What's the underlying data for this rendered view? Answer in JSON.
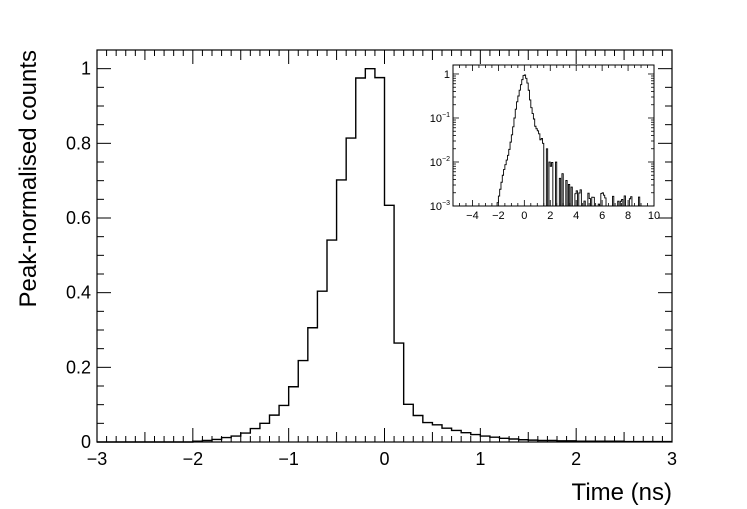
{
  "chart_data": [
    {
      "type": "histogram",
      "xlabel": "Time (ns)",
      "ylabel": "Peak-normalised counts",
      "xlim": [
        -3,
        3
      ],
      "ylim": [
        0,
        1.05
      ],
      "xticks": [
        -3,
        -2,
        -1,
        0,
        1,
        2,
        3
      ],
      "xtick_labels": [
        "−3",
        "−2",
        "−1",
        "0",
        "1",
        "2",
        "3"
      ],
      "yticks": [
        0,
        0.2,
        0.4,
        0.6,
        0.8,
        1
      ],
      "ytick_labels": [
        "0",
        "0.2",
        "0.4",
        "0.6",
        "0.8",
        "1"
      ],
      "bin_width": 0.1,
      "bin_start": -3.0,
      "values": [
        0,
        0,
        0,
        0,
        0,
        0,
        0,
        0,
        0,
        0,
        0.002,
        0.004,
        0.007,
        0.012,
        0.016,
        0.024,
        0.036,
        0.05,
        0.072,
        0.098,
        0.148,
        0.218,
        0.306,
        0.404,
        0.541,
        0.702,
        0.814,
        0.975,
        1.0,
        0.976,
        0.634,
        0.265,
        0.101,
        0.071,
        0.052,
        0.046,
        0.037,
        0.031,
        0.025,
        0.02,
        0.016,
        0.013,
        0.01,
        0.008,
        0.006,
        0.005,
        0.004,
        0.004,
        0.003,
        0.003,
        0.002,
        0.002,
        0.002,
        0.002,
        0.002,
        0.001,
        0.001,
        0.001,
        0.001,
        0.001
      ],
      "grid": false,
      "line_color": "#000000"
    },
    {
      "type": "histogram",
      "inset": true,
      "position": "top-right",
      "yscale": "log",
      "xlim": [
        -5.5,
        10
      ],
      "ylim": [
        0.001,
        1.6
      ],
      "xticks": [
        -4,
        -2,
        0,
        2,
        4,
        6,
        8,
        10
      ],
      "xtick_labels": [
        "−4",
        "−2",
        "0",
        "2",
        "4",
        "6",
        "8",
        "10"
      ],
      "ytick_labels": [
        {
          "base": "10",
          "exp": "−3"
        },
        {
          "base": "10",
          "exp": "−2"
        },
        {
          "base": "10",
          "exp": "−1"
        },
        {
          "base": "1",
          "exp": ""
        }
      ],
      "ytick_values": [
        0.001,
        0.01,
        0.1,
        1
      ],
      "bin_width": 0.1,
      "bin_start": -5.5,
      "envelope_x": [
        -2.1,
        -1.9,
        -1.6,
        -1.2,
        -0.9,
        -0.6,
        -0.3,
        -0.1,
        0,
        0.1,
        0.3,
        0.5,
        0.8,
        1.2,
        1.6,
        2.0,
        2.5,
        3.0,
        3.5,
        4.0,
        5.0,
        6.0,
        7.0,
        8.0,
        9.0,
        10.0
      ],
      "envelope_y": [
        0.001,
        0.002,
        0.006,
        0.016,
        0.05,
        0.2,
        0.5,
        0.85,
        1.0,
        0.9,
        0.55,
        0.2,
        0.08,
        0.04,
        0.02,
        0.01,
        0.006,
        0.004,
        0.003,
        0.002,
        0.0015,
        0.0013,
        0.0012,
        0.0011,
        0.0011,
        0.001
      ],
      "line_color": "#000000"
    }
  ]
}
